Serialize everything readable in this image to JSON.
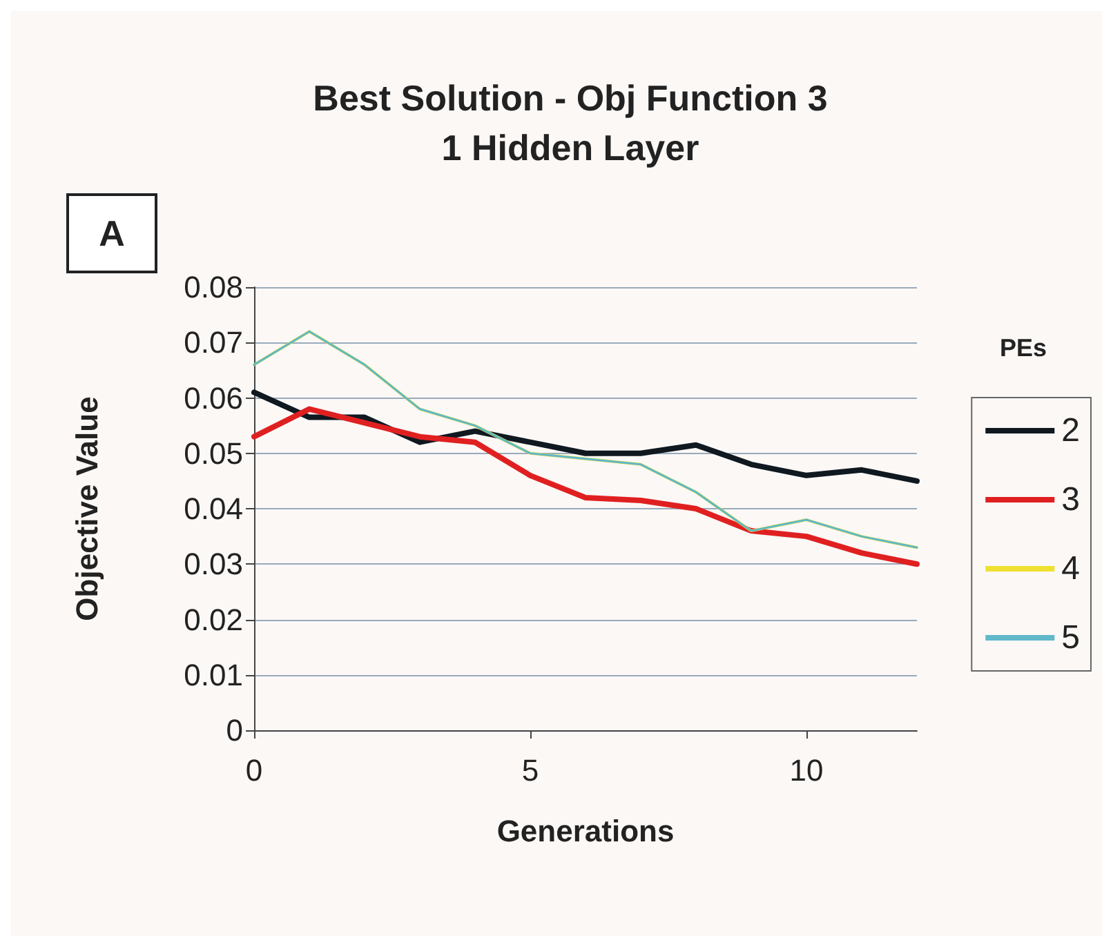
{
  "chart_data": {
    "type": "line",
    "title": "Best Solution - Obj Function 3\n1 Hidden Layer",
    "xlabel": "Generations",
    "ylabel": "Objective Value",
    "legend_title": "PEs",
    "annotations": [
      "A"
    ],
    "x": [
      0,
      1,
      2,
      3,
      4,
      5,
      6,
      7,
      8,
      9,
      10,
      11,
      12
    ],
    "series": [
      {
        "name": "2",
        "color": "#101820",
        "values": [
          0.061,
          0.0565,
          0.0565,
          0.052,
          0.054,
          0.052,
          0.05,
          0.05,
          0.0515,
          0.048,
          0.046,
          0.047,
          0.045
        ]
      },
      {
        "name": "3",
        "color": "#e02020",
        "values": [
          0.053,
          0.058,
          0.0555,
          0.053,
          0.052,
          0.046,
          0.042,
          0.0415,
          0.04,
          0.036,
          0.035,
          0.032,
          0.03
        ]
      },
      {
        "name": "4",
        "color": "#f0e030",
        "values": [
          0.066,
          0.072,
          0.066,
          0.058,
          0.055,
          0.05,
          0.049,
          0.048,
          0.043,
          0.036,
          0.038,
          0.035,
          0.033
        ]
      },
      {
        "name": "5",
        "color": "#60b8c8",
        "values": [
          0.066,
          0.072,
          0.066,
          0.058,
          0.055,
          0.05,
          0.049,
          0.048,
          0.043,
          0.036,
          0.038,
          0.035,
          0.033
        ]
      }
    ],
    "xlim": [
      0,
      12
    ],
    "xticks": [
      0,
      5,
      10
    ],
    "ylim": [
      0,
      0.08
    ],
    "yticks": [
      0,
      0.01,
      0.02,
      0.03,
      0.04,
      0.05,
      0.06,
      0.07,
      0.08
    ],
    "grid": "y",
    "legend": "right",
    "marker": "none",
    "line_style": "solid"
  }
}
